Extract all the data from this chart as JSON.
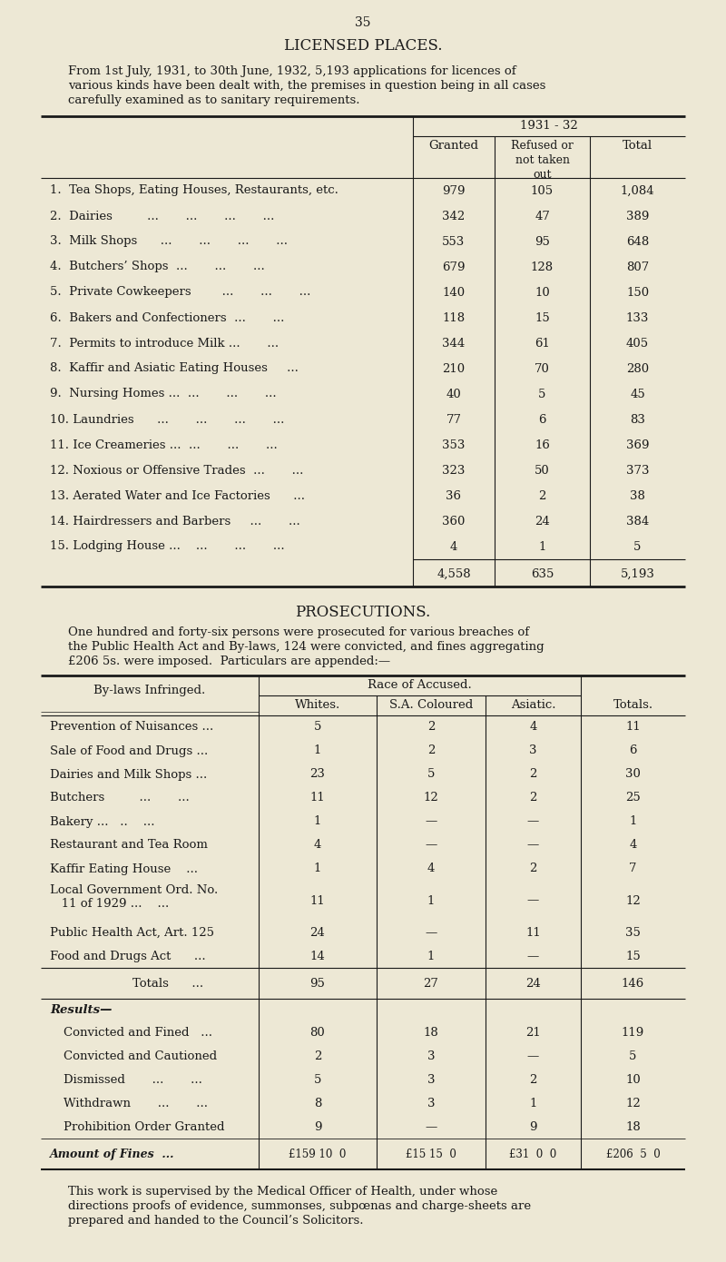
{
  "bg_color": "#ede8d5",
  "text_color": "#1a1a1a",
  "page_number": "35",
  "title1": "LICENSED PLACES.",
  "intro1_lines": [
    "From 1st July, 1931, to 30th June, 1932, 5,193 applications for licences of",
    "various kinds have been dealt with, the premises in question being in all cases",
    "carefully examined as to sanitary requirements."
  ],
  "table1_year_label": "1931 - 32",
  "table1_subheaders": [
    "Granted",
    "Refused or\nnot taken\nout",
    "Total"
  ],
  "table1_rows": [
    [
      "1.  Tea Shops, Eating Houses, Restaurants, etc.",
      "979",
      "105",
      "1,084"
    ],
    [
      "2.  Dairies         ...       ...       ...       ...",
      "342",
      "47",
      "389"
    ],
    [
      "3.  Milk Shops      ...       ...       ...       ...",
      "553",
      "95",
      "648"
    ],
    [
      "4.  Butchers’ Shops  ...       ...       ...",
      "679",
      "128",
      "807"
    ],
    [
      "5.  Private Cowkeepers        ...       ...       ...",
      "140",
      "10",
      "150"
    ],
    [
      "6.  Bakers and Confectioners  ...       ...",
      "118",
      "15",
      "133"
    ],
    [
      "7.  Permits to introduce Milk ...       ...",
      "344",
      "61",
      "405"
    ],
    [
      "8.  Kaffir and Asiatic Eating Houses     ...",
      "210",
      "70",
      "280"
    ],
    [
      "9.  Nursing Homes ...  ...       ...       ...",
      "40",
      "5",
      "45"
    ],
    [
      "10. Laundries      ...       ...       ...       ...",
      "77",
      "6",
      "83"
    ],
    [
      "11. Ice Creameries ...  ...       ...       ...",
      "353",
      "16",
      "369"
    ],
    [
      "12. Noxious or Offensive Trades  ...       ...",
      "323",
      "50",
      "373"
    ],
    [
      "13. Aerated Water and Ice Factories      ...",
      "36",
      "2",
      "38"
    ],
    [
      "14. Hairdressers and Barbers     ...       ...",
      "360",
      "24",
      "384"
    ],
    [
      "15. Lodging House ...    ...       ...       ...",
      "4",
      "1",
      "5"
    ]
  ],
  "table1_totals": [
    "4,558",
    "635",
    "5,193"
  ],
  "title2": "PROSECUTIONS.",
  "intro2_lines": [
    "One hundred and forty-six persons were prosecuted for various breaches of",
    "the Public Health Act and By-laws, 124 were convicted, and fines aggregating",
    "£206 5s. were imposed.  Particulars are appended:—"
  ],
  "table2_race_header": "Race of Accused.",
  "table2_col_headers": [
    "By-laws Infringed.",
    "Whites.",
    "S.A. Coloured",
    "Asiatic.",
    "Totals."
  ],
  "table2_rows": [
    [
      "Prevention of Nuisances ...",
      "5",
      "2",
      "4",
      "11"
    ],
    [
      "Sale of Food and Drugs ...",
      "1",
      "2",
      "3",
      "6"
    ],
    [
      "Dairies and Milk Shops ...",
      "23",
      "5",
      "2",
      "30"
    ],
    [
      "Butchers         ...       ...",
      "11",
      "12",
      "2",
      "25"
    ],
    [
      "Bakery ...   ..    ...",
      "1",
      "—",
      "—",
      "1"
    ],
    [
      "Restaurant and Tea Room",
      "4",
      "—",
      "—",
      "4"
    ],
    [
      "Kaffir Eating House    ...",
      "1",
      "4",
      "2",
      "7"
    ],
    [
      "Local Government Ord. No.\n   11 of 1929 ...    ...",
      "11",
      "1",
      "—",
      "12"
    ],
    [
      "Public Health Act, Art. 125",
      "24",
      "—",
      "11",
      "35"
    ],
    [
      "Food and Drugs Act      ...",
      "14",
      "1",
      "—",
      "15"
    ]
  ],
  "table2_totals": [
    "Totals      ...",
    "95",
    "27",
    "24",
    "146"
  ],
  "results_header": "Results—",
  "results_rows": [
    [
      "Convicted and Fined   ...",
      "80",
      "18",
      "21",
      "119"
    ],
    [
      "Convicted and Cautioned",
      "2",
      "3",
      "—",
      "5"
    ],
    [
      "Dismissed       ...       ...",
      "5",
      "3",
      "2",
      "10"
    ],
    [
      "Withdrawn       ...       ...",
      "8",
      "3",
      "1",
      "12"
    ],
    [
      "Prohibition Order Granted",
      "9",
      "—",
      "9",
      "18"
    ]
  ],
  "fines_label": "Amount of Fines  ...",
  "fines_values": [
    "£159 10  0",
    "£15 15  0",
    "£31  0  0",
    "£206  5  0"
  ],
  "footer_lines": [
    "This work is supervised by the Medical Officer of Health, under whose",
    "directions proofs of evidence, summonses, subpœnas and charge-sheets are",
    "prepared and handed to the Council’s Solicitors."
  ]
}
